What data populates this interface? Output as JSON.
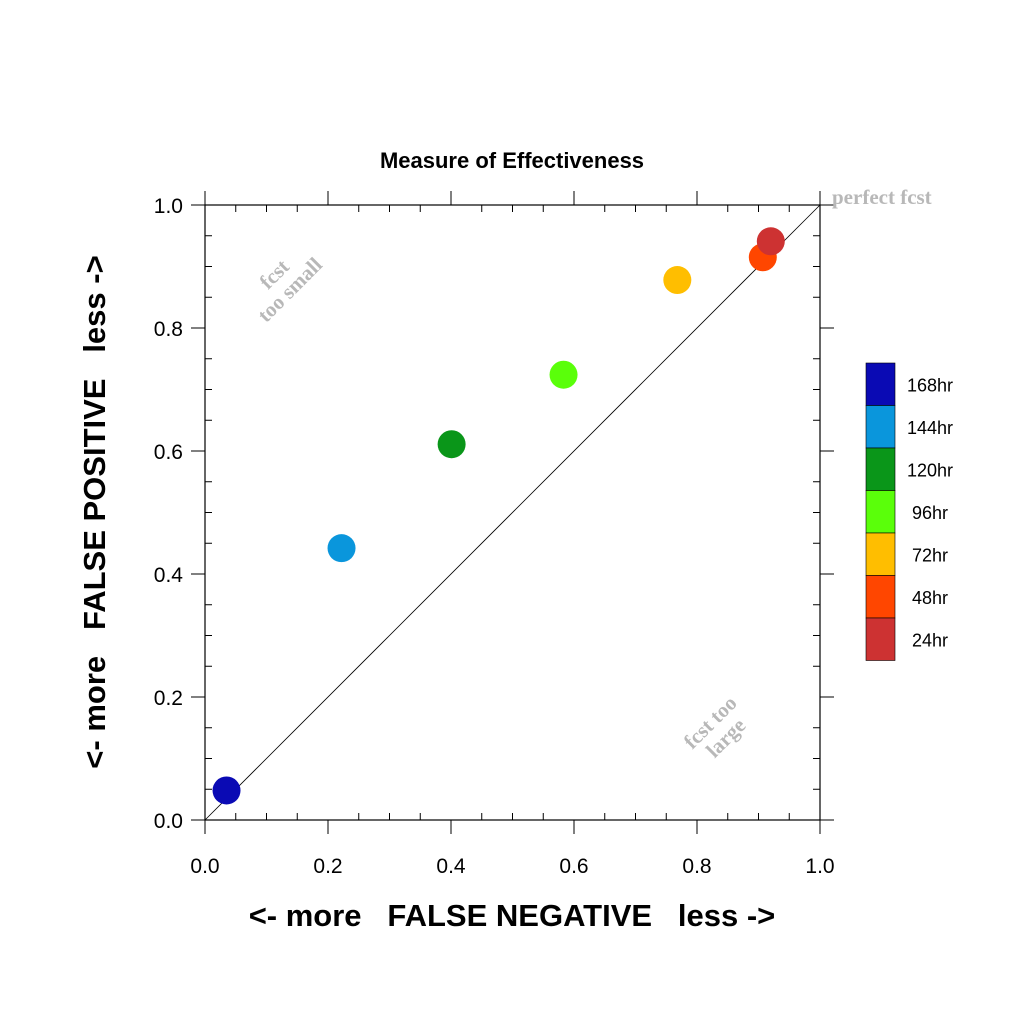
{
  "chart_data": {
    "type": "scatter",
    "title": "Measure of Effectiveness",
    "xlabel": "<- more   FALSE NEGATIVE   less ->",
    "ylabel": "<- more   FALSE POSITIVE   less ->",
    "xlim": [
      0,
      1
    ],
    "ylim": [
      0,
      1
    ],
    "x_ticks": [
      "0.0",
      "0.2",
      "0.4",
      "0.6",
      "0.8",
      "1.0"
    ],
    "y_ticks": [
      "0.0",
      "0.2",
      "0.4",
      "0.6",
      "0.8",
      "1.0"
    ],
    "grid": false,
    "diagonal_reference_line": true,
    "legend_placement": "right",
    "annotations": {
      "perfect": "perfect fcst",
      "too_small": [
        "fcst",
        "too small"
      ],
      "too_large": [
        "fcst too",
        "large"
      ]
    },
    "series": [
      {
        "name": "168hr",
        "color": "#0a0ab4",
        "x": 0.035,
        "y": 0.048
      },
      {
        "name": "144hr",
        "color": "#0a96dc",
        "x": 0.222,
        "y": 0.442
      },
      {
        "name": "120hr",
        "color": "#0a9619",
        "x": 0.401,
        "y": 0.611
      },
      {
        "name": "96hr",
        "color": "#5aff0a",
        "x": 0.583,
        "y": 0.724
      },
      {
        "name": "72hr",
        "color": "#ffbe00",
        "x": 0.768,
        "y": 0.878
      },
      {
        "name": "48hr",
        "color": "#ff4600",
        "x": 0.907,
        "y": 0.915
      },
      {
        "name": "24hr",
        "color": "#cd3232",
        "x": 0.92,
        "y": 0.941
      }
    ]
  }
}
